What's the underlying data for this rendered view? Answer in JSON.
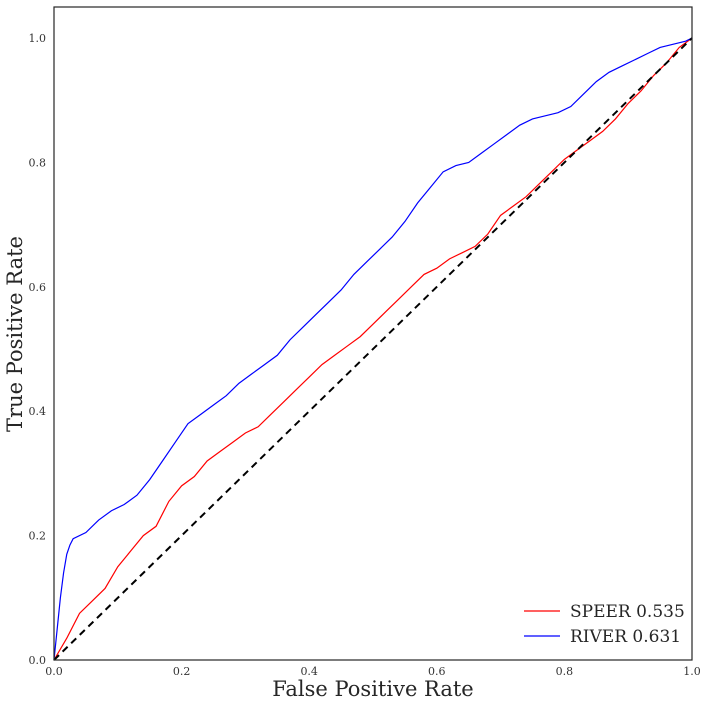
{
  "chart_data": {
    "type": "line",
    "xlabel": "False Positive Rate",
    "ylabel": "True Positive Rate",
    "xlim": [
      0,
      1
    ],
    "ylim": [
      0,
      1.05
    ],
    "x_ticks": [
      "0.0",
      "0.2",
      "0.4",
      "0.6",
      "0.8",
      "1.0"
    ],
    "y_ticks": [
      "0.0",
      "0.2",
      "0.4",
      "0.6",
      "0.8",
      "1.0"
    ],
    "grid": false,
    "legend_position": "bottom-right",
    "series": [
      {
        "name": "SPEER 0.535",
        "color": "#ff0000",
        "x": [
          0,
          0.02,
          0.04,
          0.06,
          0.08,
          0.1,
          0.12,
          0.14,
          0.16,
          0.18,
          0.2,
          0.22,
          0.24,
          0.26,
          0.28,
          0.3,
          0.32,
          0.34,
          0.36,
          0.38,
          0.4,
          0.42,
          0.44,
          0.46,
          0.48,
          0.5,
          0.52,
          0.54,
          0.56,
          0.58,
          0.6,
          0.62,
          0.64,
          0.66,
          0.68,
          0.7,
          0.72,
          0.74,
          0.76,
          0.78,
          0.8,
          0.82,
          0.84,
          0.86,
          0.88,
          0.9,
          0.92,
          0.94,
          0.96,
          0.98,
          1.0
        ],
        "y": [
          0,
          0.035,
          0.075,
          0.095,
          0.115,
          0.15,
          0.175,
          0.2,
          0.215,
          0.255,
          0.28,
          0.295,
          0.32,
          0.335,
          0.35,
          0.365,
          0.375,
          0.395,
          0.415,
          0.435,
          0.455,
          0.475,
          0.49,
          0.505,
          0.52,
          0.54,
          0.56,
          0.58,
          0.6,
          0.62,
          0.63,
          0.645,
          0.655,
          0.665,
          0.685,
          0.715,
          0.73,
          0.745,
          0.765,
          0.785,
          0.805,
          0.82,
          0.835,
          0.85,
          0.87,
          0.895,
          0.915,
          0.94,
          0.96,
          0.985,
          1.0
        ]
      },
      {
        "name": "RIVER 0.631",
        "color": "#0000ff",
        "x": [
          0,
          0.005,
          0.01,
          0.015,
          0.02,
          0.025,
          0.03,
          0.05,
          0.07,
          0.09,
          0.11,
          0.13,
          0.15,
          0.17,
          0.19,
          0.21,
          0.23,
          0.25,
          0.27,
          0.29,
          0.31,
          0.33,
          0.35,
          0.37,
          0.39,
          0.41,
          0.43,
          0.45,
          0.47,
          0.49,
          0.51,
          0.53,
          0.55,
          0.57,
          0.59,
          0.61,
          0.63,
          0.65,
          0.67,
          0.69,
          0.71,
          0.73,
          0.75,
          0.77,
          0.79,
          0.81,
          0.83,
          0.85,
          0.87,
          0.89,
          0.91,
          0.93,
          0.95,
          0.97,
          0.99,
          1.0
        ],
        "y": [
          0,
          0.05,
          0.1,
          0.14,
          0.17,
          0.185,
          0.195,
          0.205,
          0.225,
          0.24,
          0.25,
          0.265,
          0.29,
          0.32,
          0.35,
          0.38,
          0.395,
          0.41,
          0.425,
          0.445,
          0.46,
          0.475,
          0.49,
          0.515,
          0.535,
          0.555,
          0.575,
          0.595,
          0.62,
          0.64,
          0.66,
          0.68,
          0.705,
          0.735,
          0.76,
          0.785,
          0.795,
          0.8,
          0.815,
          0.83,
          0.845,
          0.86,
          0.87,
          0.875,
          0.88,
          0.89,
          0.91,
          0.93,
          0.945,
          0.955,
          0.965,
          0.975,
          0.985,
          0.99,
          0.995,
          1.0
        ]
      }
    ],
    "reference_line": {
      "color": "#000000",
      "style": "dashed"
    }
  }
}
